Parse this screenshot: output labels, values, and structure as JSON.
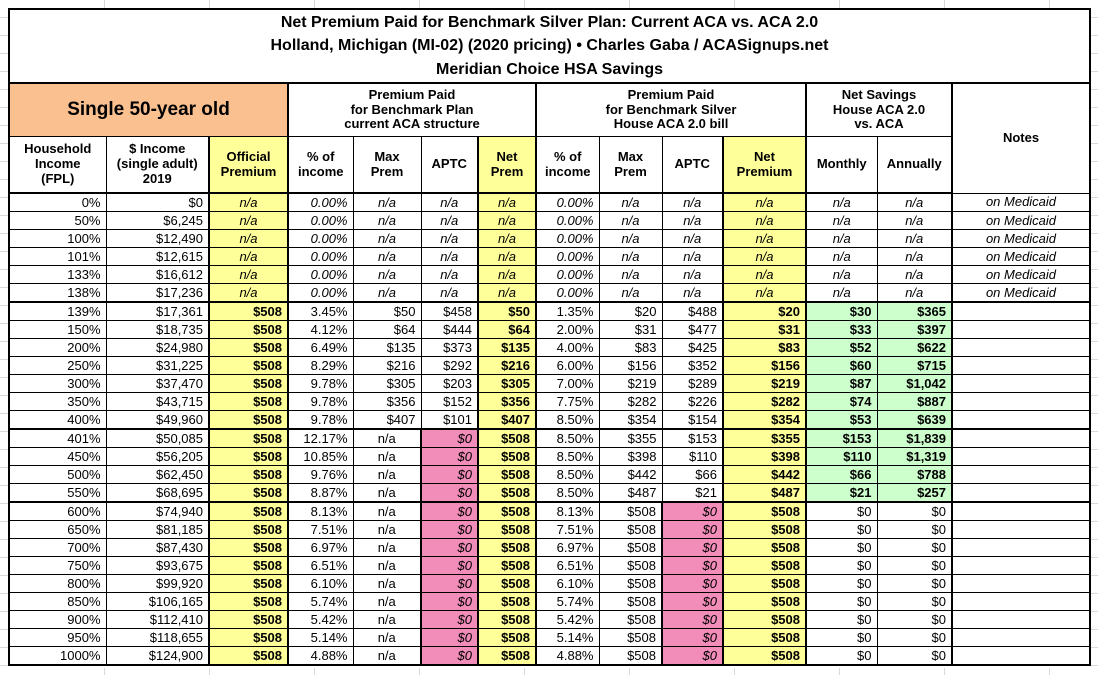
{
  "title": {
    "line1": "Net Premium Paid for Benchmark Silver Plan: Current ACA vs. ACA 2.0",
    "line2": "Holland, Michigan (MI-02) (2020 pricing) • Charles Gaba / ACASignups.net",
    "line3": "Meridian Choice HSA Savings"
  },
  "colors": {
    "header_orange": "#FAC090",
    "highlight_yellow": "#FFFF99",
    "highlight_pink": "#F28CB9",
    "highlight_green": "#CCFFCC"
  },
  "table": {
    "groups": {
      "demographic": "Single 50-year old",
      "current_aca": "Premium Paid\nfor Benchmark Plan\ncurrent ACA structure",
      "house_aca2": "Premium Paid\nfor Benchmark Silver\nHouse ACA 2.0 bill",
      "net_savings": "Net Savings\nHouse ACA 2.0\nvs. ACA",
      "notes": "Notes"
    },
    "col_headers": [
      "Household\nIncome\n(FPL)",
      "$ Income\n(single adult)\n2019",
      "Official\nPremium",
      "% of\nincome",
      "Max\nPrem",
      "APTC",
      "Net\nPrem",
      "% of\nincome",
      "Max\nPrem",
      "APTC",
      "Net\nPremium",
      "Monthly",
      "Annually"
    ],
    "rows": [
      {
        "fpl": "0%",
        "income": "$0",
        "official": "n/a",
        "pct_aca": "0.00%",
        "max_aca": "n/a",
        "aptc_aca": "n/a",
        "net_aca": "n/a",
        "pct_aca2": "0.00%",
        "max_aca2": "n/a",
        "aptc_aca2": "n/a",
        "net_aca2": "n/a",
        "monthly": "n/a",
        "annually": "n/a",
        "notes": "on Medicaid",
        "section": "medicaid"
      },
      {
        "fpl": "50%",
        "income": "$6,245",
        "official": "n/a",
        "pct_aca": "0.00%",
        "max_aca": "n/a",
        "aptc_aca": "n/a",
        "net_aca": "n/a",
        "pct_aca2": "0.00%",
        "max_aca2": "n/a",
        "aptc_aca2": "n/a",
        "net_aca2": "n/a",
        "monthly": "n/a",
        "annually": "n/a",
        "notes": "on Medicaid",
        "section": "medicaid"
      },
      {
        "fpl": "100%",
        "income": "$12,490",
        "official": "n/a",
        "pct_aca": "0.00%",
        "max_aca": "n/a",
        "aptc_aca": "n/a",
        "net_aca": "n/a",
        "pct_aca2": "0.00%",
        "max_aca2": "n/a",
        "aptc_aca2": "n/a",
        "net_aca2": "n/a",
        "monthly": "n/a",
        "annually": "n/a",
        "notes": "on Medicaid",
        "section": "medicaid"
      },
      {
        "fpl": "101%",
        "income": "$12,615",
        "official": "n/a",
        "pct_aca": "0.00%",
        "max_aca": "n/a",
        "aptc_aca": "n/a",
        "net_aca": "n/a",
        "pct_aca2": "0.00%",
        "max_aca2": "n/a",
        "aptc_aca2": "n/a",
        "net_aca2": "n/a",
        "monthly": "n/a",
        "annually": "n/a",
        "notes": "on Medicaid",
        "section": "medicaid"
      },
      {
        "fpl": "133%",
        "income": "$16,612",
        "official": "n/a",
        "pct_aca": "0.00%",
        "max_aca": "n/a",
        "aptc_aca": "n/a",
        "net_aca": "n/a",
        "pct_aca2": "0.00%",
        "max_aca2": "n/a",
        "aptc_aca2": "n/a",
        "net_aca2": "n/a",
        "monthly": "n/a",
        "annually": "n/a",
        "notes": "on Medicaid",
        "section": "medicaid"
      },
      {
        "fpl": "138%",
        "income": "$17,236",
        "official": "n/a",
        "pct_aca": "0.00%",
        "max_aca": "n/a",
        "aptc_aca": "n/a",
        "net_aca": "n/a",
        "pct_aca2": "0.00%",
        "max_aca2": "n/a",
        "aptc_aca2": "n/a",
        "net_aca2": "n/a",
        "monthly": "n/a",
        "annually": "n/a",
        "notes": "on Medicaid",
        "section": "medicaid"
      },
      {
        "fpl": "139%",
        "income": "$17,361",
        "official": "$508",
        "pct_aca": "3.45%",
        "max_aca": "$50",
        "aptc_aca": "$458",
        "net_aca": "$50",
        "pct_aca2": "1.35%",
        "max_aca2": "$20",
        "aptc_aca2": "$488",
        "net_aca2": "$20",
        "monthly": "$30",
        "annually": "$365",
        "notes": "",
        "section": "subsidized"
      },
      {
        "fpl": "150%",
        "income": "$18,735",
        "official": "$508",
        "pct_aca": "4.12%",
        "max_aca": "$64",
        "aptc_aca": "$444",
        "net_aca": "$64",
        "pct_aca2": "2.00%",
        "max_aca2": "$31",
        "aptc_aca2": "$477",
        "net_aca2": "$31",
        "monthly": "$33",
        "annually": "$397",
        "notes": "",
        "section": "subsidized"
      },
      {
        "fpl": "200%",
        "income": "$24,980",
        "official": "$508",
        "pct_aca": "6.49%",
        "max_aca": "$135",
        "aptc_aca": "$373",
        "net_aca": "$135",
        "pct_aca2": "4.00%",
        "max_aca2": "$83",
        "aptc_aca2": "$425",
        "net_aca2": "$83",
        "monthly": "$52",
        "annually": "$622",
        "notes": "",
        "section": "subsidized"
      },
      {
        "fpl": "250%",
        "income": "$31,225",
        "official": "$508",
        "pct_aca": "8.29%",
        "max_aca": "$216",
        "aptc_aca": "$292",
        "net_aca": "$216",
        "pct_aca2": "6.00%",
        "max_aca2": "$156",
        "aptc_aca2": "$352",
        "net_aca2": "$156",
        "monthly": "$60",
        "annually": "$715",
        "notes": "",
        "section": "subsidized"
      },
      {
        "fpl": "300%",
        "income": "$37,470",
        "official": "$508",
        "pct_aca": "9.78%",
        "max_aca": "$305",
        "aptc_aca": "$203",
        "net_aca": "$305",
        "pct_aca2": "7.00%",
        "max_aca2": "$219",
        "aptc_aca2": "$289",
        "net_aca2": "$219",
        "monthly": "$87",
        "annually": "$1,042",
        "notes": "",
        "section": "subsidized"
      },
      {
        "fpl": "350%",
        "income": "$43,715",
        "official": "$508",
        "pct_aca": "9.78%",
        "max_aca": "$356",
        "aptc_aca": "$152",
        "net_aca": "$356",
        "pct_aca2": "7.75%",
        "max_aca2": "$282",
        "aptc_aca2": "$226",
        "net_aca2": "$282",
        "monthly": "$74",
        "annually": "$887",
        "notes": "",
        "section": "subsidized"
      },
      {
        "fpl": "400%",
        "income": "$49,960",
        "official": "$508",
        "pct_aca": "9.78%",
        "max_aca": "$407",
        "aptc_aca": "$101",
        "net_aca": "$407",
        "pct_aca2": "8.50%",
        "max_aca2": "$354",
        "aptc_aca2": "$154",
        "net_aca2": "$354",
        "monthly": "$53",
        "annually": "$639",
        "notes": "",
        "section": "subsidized"
      },
      {
        "fpl": "401%",
        "income": "$50,085",
        "official": "$508",
        "pct_aca": "12.17%",
        "max_aca": "n/a",
        "aptc_aca": "$0",
        "net_aca": "$508",
        "pct_aca2": "8.50%",
        "max_aca2": "$355",
        "aptc_aca2": "$153",
        "net_aca2": "$355",
        "monthly": "$153",
        "annually": "$1,839",
        "notes": "",
        "section": "cliff"
      },
      {
        "fpl": "450%",
        "income": "$56,205",
        "official": "$508",
        "pct_aca": "10.85%",
        "max_aca": "n/a",
        "aptc_aca": "$0",
        "net_aca": "$508",
        "pct_aca2": "8.50%",
        "max_aca2": "$398",
        "aptc_aca2": "$110",
        "net_aca2": "$398",
        "monthly": "$110",
        "annually": "$1,319",
        "notes": "",
        "section": "cliff"
      },
      {
        "fpl": "500%",
        "income": "$62,450",
        "official": "$508",
        "pct_aca": "9.76%",
        "max_aca": "n/a",
        "aptc_aca": "$0",
        "net_aca": "$508",
        "pct_aca2": "8.50%",
        "max_aca2": "$442",
        "aptc_aca2": "$66",
        "net_aca2": "$442",
        "monthly": "$66",
        "annually": "$788",
        "notes": "",
        "section": "cliff"
      },
      {
        "fpl": "550%",
        "income": "$68,695",
        "official": "$508",
        "pct_aca": "8.87%",
        "max_aca": "n/a",
        "aptc_aca": "$0",
        "net_aca": "$508",
        "pct_aca2": "8.50%",
        "max_aca2": "$487",
        "aptc_aca2": "$21",
        "net_aca2": "$487",
        "monthly": "$21",
        "annually": "$257",
        "notes": "",
        "section": "cliff"
      },
      {
        "fpl": "600%",
        "income": "$74,940",
        "official": "$508",
        "pct_aca": "8.13%",
        "max_aca": "n/a",
        "aptc_aca": "$0",
        "net_aca": "$508",
        "pct_aca2": "8.13%",
        "max_aca2": "$508",
        "aptc_aca2": "$0",
        "net_aca2": "$508",
        "monthly": "$0",
        "annually": "$0",
        "notes": "",
        "section": "flat"
      },
      {
        "fpl": "650%",
        "income": "$81,185",
        "official": "$508",
        "pct_aca": "7.51%",
        "max_aca": "n/a",
        "aptc_aca": "$0",
        "net_aca": "$508",
        "pct_aca2": "7.51%",
        "max_aca2": "$508",
        "aptc_aca2": "$0",
        "net_aca2": "$508",
        "monthly": "$0",
        "annually": "$0",
        "notes": "",
        "section": "flat"
      },
      {
        "fpl": "700%",
        "income": "$87,430",
        "official": "$508",
        "pct_aca": "6.97%",
        "max_aca": "n/a",
        "aptc_aca": "$0",
        "net_aca": "$508",
        "pct_aca2": "6.97%",
        "max_aca2": "$508",
        "aptc_aca2": "$0",
        "net_aca2": "$508",
        "monthly": "$0",
        "annually": "$0",
        "notes": "",
        "section": "flat"
      },
      {
        "fpl": "750%",
        "income": "$93,675",
        "official": "$508",
        "pct_aca": "6.51%",
        "max_aca": "n/a",
        "aptc_aca": "$0",
        "net_aca": "$508",
        "pct_aca2": "6.51%",
        "max_aca2": "$508",
        "aptc_aca2": "$0",
        "net_aca2": "$508",
        "monthly": "$0",
        "annually": "$0",
        "notes": "",
        "section": "flat"
      },
      {
        "fpl": "800%",
        "income": "$99,920",
        "official": "$508",
        "pct_aca": "6.10%",
        "max_aca": "n/a",
        "aptc_aca": "$0",
        "net_aca": "$508",
        "pct_aca2": "6.10%",
        "max_aca2": "$508",
        "aptc_aca2": "$0",
        "net_aca2": "$508",
        "monthly": "$0",
        "annually": "$0",
        "notes": "",
        "section": "flat"
      },
      {
        "fpl": "850%",
        "income": "$106,165",
        "official": "$508",
        "pct_aca": "5.74%",
        "max_aca": "n/a",
        "aptc_aca": "$0",
        "net_aca": "$508",
        "pct_aca2": "5.74%",
        "max_aca2": "$508",
        "aptc_aca2": "$0",
        "net_aca2": "$508",
        "monthly": "$0",
        "annually": "$0",
        "notes": "",
        "section": "flat"
      },
      {
        "fpl": "900%",
        "income": "$112,410",
        "official": "$508",
        "pct_aca": "5.42%",
        "max_aca": "n/a",
        "aptc_aca": "$0",
        "net_aca": "$508",
        "pct_aca2": "5.42%",
        "max_aca2": "$508",
        "aptc_aca2": "$0",
        "net_aca2": "$508",
        "monthly": "$0",
        "annually": "$0",
        "notes": "",
        "section": "flat"
      },
      {
        "fpl": "950%",
        "income": "$118,655",
        "official": "$508",
        "pct_aca": "5.14%",
        "max_aca": "n/a",
        "aptc_aca": "$0",
        "net_aca": "$508",
        "pct_aca2": "5.14%",
        "max_aca2": "$508",
        "aptc_aca2": "$0",
        "net_aca2": "$508",
        "monthly": "$0",
        "annually": "$0",
        "notes": "",
        "section": "flat"
      },
      {
        "fpl": "1000%",
        "income": "$124,900",
        "official": "$508",
        "pct_aca": "4.88%",
        "max_aca": "n/a",
        "aptc_aca": "$0",
        "net_aca": "$508",
        "pct_aca2": "4.88%",
        "max_aca2": "$508",
        "aptc_aca2": "$0",
        "net_aca2": "$508",
        "monthly": "$0",
        "annually": "$0",
        "notes": "",
        "section": "flat"
      }
    ]
  }
}
